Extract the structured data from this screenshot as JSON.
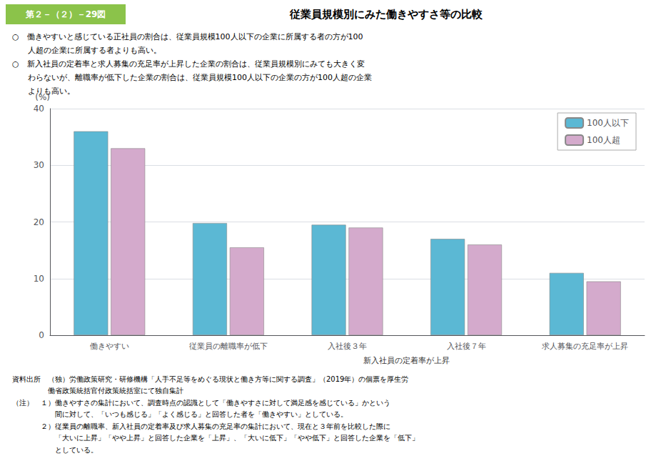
{
  "chart_data": {
    "type": "bar",
    "title_label": "第２－（２）－29図",
    "title": "従業員規模別にみた働きやすさ等の比較",
    "subtitle": [
      "○　働きやすいと感じている正社員の割合は、従業員規模100人以下の企業に所属する者の方が100",
      "　　人超の企業に所属する者よりも高い。",
      "○　新入社員の定着率と求人募集の充足率が上昇した企業の割合は、従業員規模別にみても大きく変",
      "　　わらないが、離職率が低下した企業の割合は、従業員規模100人以下の企業の方が100人超の企業",
      "　　よりも高い。"
    ],
    "categories": [
      "働きやすい",
      "従業員の離職率が低下",
      "入社後３年",
      "入社後７年",
      "求人募集の充足率が上昇"
    ],
    "annotations": [
      "新入社員の定着率が上昇"
    ],
    "series": [
      {
        "name": "100人以下",
        "color": "#5BB8D4",
        "values": [
          36.0,
          19.8,
          19.5,
          17.0,
          11.0
        ]
      },
      {
        "name": "100人超",
        "color": "#D4AACC",
        "values": [
          33.0,
          15.5,
          19.0,
          16.0,
          9.5
        ]
      }
    ],
    "ylabel": "(%)",
    "ylim": [
      0,
      40
    ],
    "yticks": [
      0,
      10,
      20,
      30,
      40
    ],
    "grid": true,
    "legend": "upper right",
    "source": [
      "資料出所　（独）労働政策研究・研修機構「人手不足等をめぐる現状と働き方等に関する調査」（2019年）の個票を厚生労",
      "　　　　　働省政策統括官付政策統括室にて独自集計",
      "（注）　１）働きやすさの集計において、調査時点の認識として「働きやすさに対して満足感を感じている」かという",
      "　　　　　　間に対して、「いつも感じる」「よく感じる」と回答した者を「働きやすい」としている。",
      "　　　　２）従業員の離職率、新入社員の定着率及び求人募集の充足率の集計において、現在と３年前を比較した際に",
      "　　　　　　「大いに上昇」「やや上昇」と回答した企業を「上昇」、「大いに低下」「やや低下」と回答した企業を「低下」",
      "　　　　　　としている。"
    ]
  }
}
